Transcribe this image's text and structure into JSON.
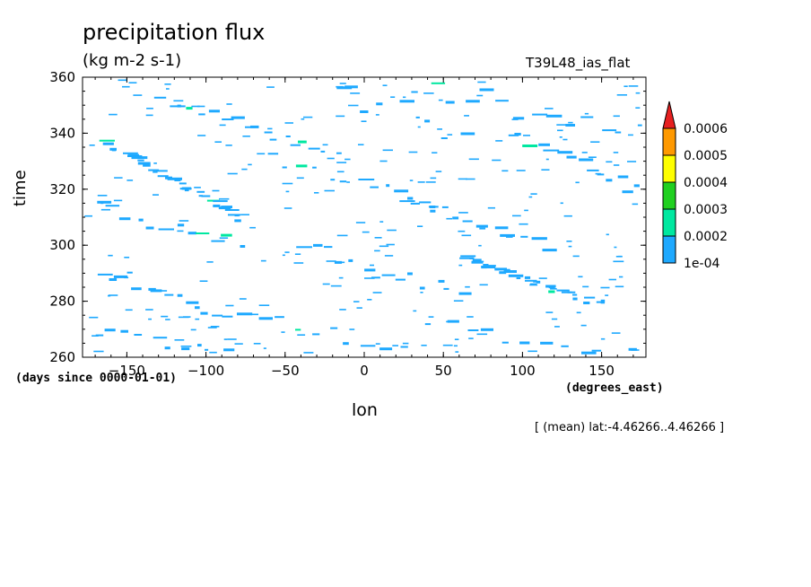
{
  "chart_data": {
    "type": "heatmap",
    "title": "precipitation flux",
    "units": "(kg m-2 s-1)",
    "run_label": "T39L48_ias_flat",
    "xlabel": "lon",
    "xunits": "(degrees_east)",
    "ylabel": "time",
    "yunits": "(days since 0000-01-01)",
    "note": "[ (mean) lat:-4.46266..4.46266 ]",
    "xlim": [
      -178,
      178
    ],
    "ylim": [
      260,
      360
    ],
    "x_ticks": [
      -150,
      -100,
      -50,
      0,
      50,
      100,
      150
    ],
    "y_ticks": [
      260,
      280,
      300,
      320,
      340,
      360
    ],
    "colorbar": {
      "levels": [
        "1e-04",
        "0.0002",
        "0.0003",
        "0.0004",
        "0.0005",
        "0.0006"
      ],
      "colors": [
        "#1ea9ff",
        "#00e8a0",
        "#20d020",
        "#ffff00",
        "#ff9900",
        "#e62020"
      ]
    },
    "features": [
      {
        "lon0": -165,
        "t0": 337,
        "lon1": -80,
        "t1": 310,
        "count": 34,
        "spread": 1.0
      },
      {
        "lon0": 60,
        "t0": 296,
        "lon1": 150,
        "t1": 279,
        "count": 30,
        "spread": 1.0
      },
      {
        "lon0": -170,
        "t0": 292,
        "lon1": -90,
        "t1": 276,
        "count": 14,
        "spread": 3.0
      },
      {
        "lon0": -130,
        "t0": 352,
        "lon1": -20,
        "t1": 333,
        "count": 18,
        "spread": 2.0
      },
      {
        "lon0": 20,
        "t0": 318,
        "lon1": 110,
        "t1": 300,
        "count": 16,
        "spread": 2.0
      },
      {
        "lon0": 90,
        "t0": 340,
        "lon1": 170,
        "t1": 320,
        "count": 14,
        "spread": 2.0
      },
      {
        "lon0": -40,
        "t0": 300,
        "lon1": 60,
        "t1": 282,
        "count": 14,
        "spread": 3.0
      },
      {
        "lon0": -170,
        "t0": 270,
        "lon1": -90,
        "t1": 262,
        "count": 10,
        "spread": 2.0
      },
      {
        "lon0": 30,
        "t0": 358,
        "lon1": 170,
        "t1": 340,
        "count": 14,
        "spread": 4.0
      },
      {
        "lon0": -60,
        "t0": 330,
        "lon1": 40,
        "t1": 315,
        "count": 12,
        "spread": 3.0
      },
      {
        "lon0": -170,
        "t0": 315,
        "lon1": -80,
        "t1": 300,
        "count": 12,
        "spread": 3.0
      },
      {
        "lon0": 40,
        "t0": 272,
        "lon1": 170,
        "t1": 262,
        "count": 12,
        "spread": 3.0
      },
      {
        "lon0": -80,
        "t0": 275,
        "lon1": 20,
        "t1": 262,
        "count": 10,
        "spread": 3.0
      },
      {
        "lon0": -30,
        "t0": 358,
        "lon1": 60,
        "t1": 340,
        "count": 10,
        "spread": 4.0
      }
    ]
  }
}
